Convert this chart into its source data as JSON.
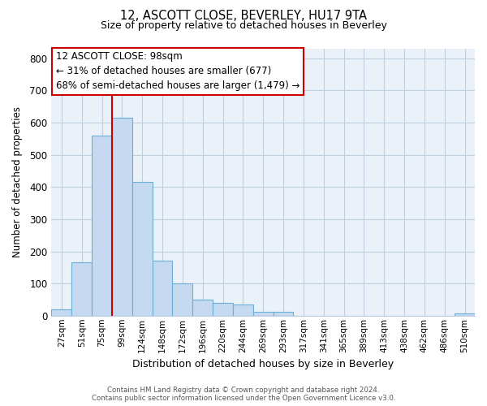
{
  "title": "12, ASCOTT CLOSE, BEVERLEY, HU17 9TA",
  "subtitle": "Size of property relative to detached houses in Beverley",
  "xlabel": "Distribution of detached houses by size in Beverley",
  "ylabel": "Number of detached properties",
  "bar_labels": [
    "27sqm",
    "51sqm",
    "75sqm",
    "99sqm",
    "124sqm",
    "148sqm",
    "172sqm",
    "196sqm",
    "220sqm",
    "244sqm",
    "269sqm",
    "293sqm",
    "317sqm",
    "341sqm",
    "365sqm",
    "389sqm",
    "413sqm",
    "438sqm",
    "462sqm",
    "486sqm",
    "510sqm"
  ],
  "bar_values": [
    20,
    165,
    560,
    615,
    415,
    170,
    100,
    50,
    40,
    35,
    13,
    12,
    0,
    0,
    0,
    0,
    0,
    0,
    0,
    0,
    8
  ],
  "bar_color": "#c5d9f0",
  "bar_edge_color": "#6baed6",
  "property_line_index": 3,
  "property_line_color": "#cc0000",
  "ylim": [
    0,
    830
  ],
  "yticks": [
    0,
    100,
    200,
    300,
    400,
    500,
    600,
    700,
    800
  ],
  "annotation_title": "12 ASCOTT CLOSE: 98sqm",
  "annotation_line1": "← 31% of detached houses are smaller (677)",
  "annotation_line2": "68% of semi-detached houses are larger (1,479) →",
  "footer_line1": "Contains HM Land Registry data © Crown copyright and database right 2024.",
  "footer_line2": "Contains public sector information licensed under the Open Government Licence v3.0.",
  "background_color": "#ffffff",
  "plot_bg_color": "#eaf1f8",
  "grid_color": "#c0cfe0"
}
